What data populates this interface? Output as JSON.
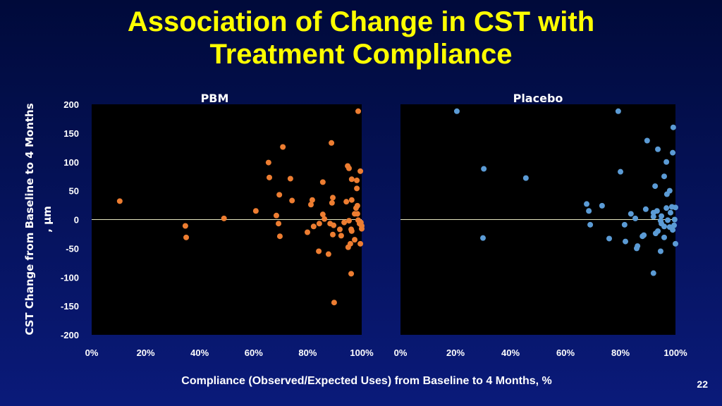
{
  "slide": {
    "title_line1": "Association of Change in CST with",
    "title_line2": "Treatment Compliance",
    "page_number": "22"
  },
  "chart_data": [
    {
      "type": "scatter",
      "title": "PBM",
      "xlabel": "Compliance (Observed/Expected Uses) from Baseline to 4 Months, %",
      "ylabel": "CST Change from Baseline to 4 Months,  µm",
      "xlim": [
        0,
        100
      ],
      "ylim": [
        -200,
        200
      ],
      "xticks": [
        "0%",
        "20%",
        "40%",
        "60%",
        "80%",
        "100%"
      ],
      "yticks": [
        "200",
        "150",
        "100",
        "50",
        "0",
        "-50",
        "-100",
        "-150",
        "-200"
      ],
      "grid": false,
      "color": "#ed7d31",
      "points": [
        [
          10.4,
          32
        ],
        [
          34.7,
          -11
        ],
        [
          35,
          -31
        ],
        [
          49,
          2
        ],
        [
          98.7,
          188
        ],
        [
          88.8,
          133
        ],
        [
          70.8,
          126
        ],
        [
          65.5,
          99
        ],
        [
          65.8,
          73
        ],
        [
          73.6,
          71
        ],
        [
          94.8,
          93
        ],
        [
          95.3,
          89
        ],
        [
          99.5,
          84
        ],
        [
          85.6,
          65
        ],
        [
          96.3,
          70
        ],
        [
          98.2,
          68
        ],
        [
          98.2,
          54
        ],
        [
          69.5,
          43
        ],
        [
          74.2,
          33
        ],
        [
          81.7,
          34
        ],
        [
          81.2,
          26
        ],
        [
          89.3,
          38
        ],
        [
          89.0,
          29
        ],
        [
          94.3,
          31
        ],
        [
          96.3,
          34
        ],
        [
          98.4,
          24
        ],
        [
          97.9,
          20
        ],
        [
          97.4,
          10
        ],
        [
          98.4,
          10
        ],
        [
          60.8,
          15
        ],
        [
          68.4,
          7
        ],
        [
          85.6,
          9
        ],
        [
          86.2,
          1
        ],
        [
          69.2,
          -7
        ],
        [
          95.3,
          -2
        ],
        [
          98.7,
          -1
        ],
        [
          99.7,
          -5
        ],
        [
          99.2,
          -7
        ],
        [
          100,
          -11
        ],
        [
          100,
          -16
        ],
        [
          93.5,
          -5
        ],
        [
          88.3,
          -7
        ],
        [
          89.6,
          -10
        ],
        [
          84.3,
          -7
        ],
        [
          82.2,
          -12
        ],
        [
          79.9,
          -22
        ],
        [
          69.7,
          -29
        ],
        [
          91.9,
          -17
        ],
        [
          96.1,
          -17
        ],
        [
          96.3,
          -20
        ],
        [
          89.3,
          -26
        ],
        [
          92.4,
          -28
        ],
        [
          97.4,
          -35
        ],
        [
          95.8,
          -42
        ],
        [
          95.0,
          -48
        ],
        [
          99.5,
          -42
        ],
        [
          84.1,
          -55
        ],
        [
          87.7,
          -60
        ],
        [
          96.1,
          -94
        ],
        [
          89.8,
          -144
        ]
      ]
    },
    {
      "type": "scatter",
      "title": "Placebo",
      "xlim": [
        0,
        100
      ],
      "ylim": [
        -200,
        200
      ],
      "xticks": [
        "0%",
        "20%",
        "40%",
        "60%",
        "80%",
        "100%"
      ],
      "grid": false,
      "color": "#5b9bd5",
      "points": [
        [
          20.5,
          188
        ],
        [
          30.3,
          88
        ],
        [
          45.6,
          72
        ],
        [
          30,
          -32
        ],
        [
          67.7,
          27
        ],
        [
          68.5,
          15
        ],
        [
          69,
          -9
        ],
        [
          79.2,
          188
        ],
        [
          99.2,
          160
        ],
        [
          89.7,
          137
        ],
        [
          93.6,
          122
        ],
        [
          99,
          116
        ],
        [
          96.7,
          100
        ],
        [
          80,
          83
        ],
        [
          95.9,
          75
        ],
        [
          92.6,
          58
        ],
        [
          97.9,
          50
        ],
        [
          96.9,
          44
        ],
        [
          73.3,
          24
        ],
        [
          89.2,
          18
        ],
        [
          96.7,
          20
        ],
        [
          98.7,
          22
        ],
        [
          100,
          21
        ],
        [
          98.2,
          12
        ],
        [
          92,
          12
        ],
        [
          93.3,
          15
        ],
        [
          92,
          5
        ],
        [
          94.9,
          6
        ],
        [
          83.8,
          10
        ],
        [
          85.4,
          2
        ],
        [
          94.6,
          -2
        ],
        [
          97.2,
          -1
        ],
        [
          99.7,
          0
        ],
        [
          94.9,
          -7
        ],
        [
          95.9,
          -12
        ],
        [
          97.9,
          -13
        ],
        [
          99.5,
          -10
        ],
        [
          99,
          -18
        ],
        [
          81.5,
          -9
        ],
        [
          93.6,
          -20
        ],
        [
          92.8,
          -24
        ],
        [
          95.9,
          -31
        ],
        [
          88.5,
          -27
        ],
        [
          88,
          -29
        ],
        [
          75.9,
          -33
        ],
        [
          81.8,
          -38
        ],
        [
          86.2,
          -46
        ],
        [
          85.9,
          -50
        ],
        [
          100,
          -42
        ],
        [
          94.6,
          -55
        ],
        [
          92,
          -93
        ]
      ]
    }
  ]
}
